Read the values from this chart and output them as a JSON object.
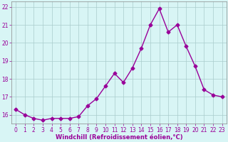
{
  "x": [
    0,
    1,
    2,
    3,
    4,
    5,
    6,
    7,
    8,
    9,
    10,
    11,
    12,
    13,
    14,
    15,
    16,
    17,
    18,
    19,
    20,
    21,
    22,
    23
  ],
  "y": [
    16.3,
    16.0,
    15.8,
    15.7,
    15.8,
    15.8,
    15.8,
    15.9,
    16.5,
    16.9,
    17.6,
    18.3,
    17.8,
    18.6,
    19.7,
    21.0,
    21.9,
    20.6,
    21.0,
    19.8,
    18.7,
    17.4,
    17.1,
    17.0
  ],
  "line_color": "#990099",
  "marker": "D",
  "markersize": 2.5,
  "linewidth": 1.0,
  "xlabel": "Windchill (Refroidissement éolien,°C)",
  "xlabel_fontsize": 6.0,
  "ylim": [
    15.5,
    22.3
  ],
  "xlim": [
    -0.5,
    23.5
  ],
  "yticks": [
    16,
    17,
    18,
    19,
    20,
    21,
    22
  ],
  "xticks": [
    0,
    1,
    2,
    3,
    4,
    5,
    6,
    7,
    8,
    9,
    10,
    11,
    12,
    13,
    14,
    15,
    16,
    17,
    18,
    19,
    20,
    21,
    22,
    23
  ],
  "grid_color": "#aacccc",
  "bg_color": "#d8f5f5",
  "tick_fontsize": 5.5,
  "tick_color": "#990099",
  "spine_color": "#888888"
}
